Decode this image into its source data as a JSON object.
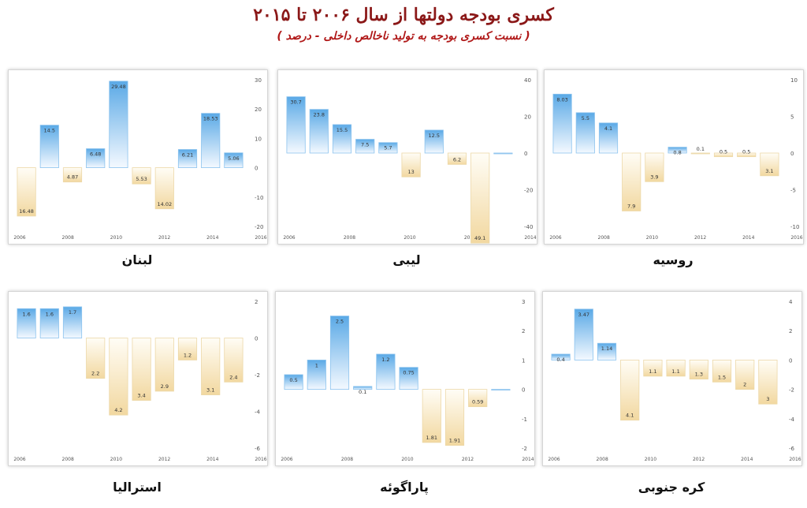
{
  "header": {
    "title": "کسری بودجه دولتها از سال ۲۰۰۶ تا ۲۰۱۵",
    "subtitle": "( نسبت کسری بودجه به تولید ناخالص داخلی - درصد )"
  },
  "colors": {
    "positive_bar": "#5aa9e6",
    "negative_bar": "#f2d8a0",
    "axis_text": "#555555"
  },
  "chart_data": [
    {
      "type": "bar",
      "country": "لبنان",
      "categories": [
        "2006",
        "2007",
        "2008",
        "2009",
        "2010",
        "2011",
        "2012",
        "2013",
        "2014",
        "2015"
      ],
      "values": [
        -16.48,
        14.5,
        -4.87,
        6.48,
        29.48,
        -5.53,
        -14.02,
        6.21,
        18.53,
        5.06
      ],
      "value_labels": [
        "16.48",
        "14.5",
        "4.87",
        "6.48",
        "29.48",
        "5.53",
        "14.02",
        "6.21",
        "18.53",
        "5.06"
      ],
      "ylim": [
        -20,
        30
      ],
      "yticks": [
        30,
        20,
        10,
        0,
        -10,
        -20
      ],
      "ytick_labels": [
        "30",
        "20",
        "10",
        "0",
        "-10",
        "-20"
      ],
      "xticks": [
        "2006",
        "2008",
        "2010",
        "2012",
        "2014",
        "2016"
      ]
    },
    {
      "type": "bar",
      "country": "لیبی",
      "categories": [
        "2006",
        "2007",
        "2008",
        "2009",
        "2010",
        "2011",
        "2012",
        "2013",
        "2014",
        "2015"
      ],
      "values": [
        30.7,
        23.8,
        15.5,
        7.5,
        5.7,
        -13,
        12.5,
        -6.2,
        -49.1,
        0
      ],
      "value_labels": [
        "30.7",
        "23.8",
        "15.5",
        "7.5",
        "5.7",
        "13",
        "12.5",
        "6.2",
        "49.1",
        ""
      ],
      "ylim": [
        -40,
        40
      ],
      "yticks": [
        40,
        20,
        0,
        -20,
        -40
      ],
      "ytick_labels": [
        "40",
        "20",
        "0",
        "-20",
        "-40"
      ],
      "xticks": [
        "2006",
        "2008",
        "2010",
        "2012",
        "2014"
      ]
    },
    {
      "type": "bar",
      "country": "روسیه",
      "categories": [
        "2006",
        "2007",
        "2008",
        "2009",
        "2010",
        "2011",
        "2012",
        "2013",
        "2014",
        "2015"
      ],
      "values": [
        8.03,
        5.5,
        4.1,
        -7.9,
        -3.9,
        0.8,
        -0.1,
        -0.5,
        -0.5,
        -3.1
      ],
      "value_labels": [
        "8.03",
        "5.5",
        "4.1",
        "7.9",
        "3.9",
        "0.8",
        "0.1",
        "0.5",
        "0.5",
        "3.1"
      ],
      "ylim": [
        -10,
        10
      ],
      "yticks": [
        10,
        5,
        0,
        -5,
        -10
      ],
      "ytick_labels": [
        "10",
        "5",
        "0",
        "-5",
        "-10"
      ],
      "xticks": [
        "2006",
        "2008",
        "2010",
        "2012",
        "2014",
        "2016"
      ]
    },
    {
      "type": "bar",
      "country": "استرالیا",
      "categories": [
        "2006",
        "2007",
        "2008",
        "2009",
        "2010",
        "2011",
        "2012",
        "2013",
        "2014",
        "2015"
      ],
      "values": [
        1.6,
        1.6,
        1.7,
        -2.2,
        -4.2,
        -3.4,
        -2.9,
        -1.2,
        -3.1,
        -2.4
      ],
      "value_labels": [
        "1.6",
        "1.6",
        "1.7",
        "2.2",
        "4.2",
        "3.4",
        "2.9",
        "1.2",
        "3.1",
        "2.4"
      ],
      "ylim": [
        -6,
        2
      ],
      "yticks": [
        2,
        0,
        -2,
        -4,
        -6
      ],
      "ytick_labels": [
        "2",
        "0",
        "-2",
        "-4",
        "-6"
      ],
      "xticks": [
        "2006",
        "2008",
        "2010",
        "2012",
        "2014",
        "2016"
      ]
    },
    {
      "type": "bar",
      "country": "پاراگوئه",
      "categories": [
        "2006",
        "2007",
        "2008",
        "2009",
        "2010",
        "2011",
        "2012",
        "2013",
        "2014",
        "2015"
      ],
      "values": [
        0.5,
        1,
        2.5,
        0.1,
        1.2,
        0.75,
        -1.81,
        -1.91,
        -0.59,
        0
      ],
      "value_labels": [
        "0.5",
        "1",
        "2.5",
        "0.1",
        "1.2",
        "0.75",
        "1.81",
        "1.91",
        "0.59",
        ""
      ],
      "ylim": [
        -2,
        3
      ],
      "yticks": [
        3,
        2,
        1,
        0,
        -1,
        -2
      ],
      "ytick_labels": [
        "3",
        "2",
        "1",
        "0",
        "-1",
        "-2"
      ],
      "xticks": [
        "2006",
        "2008",
        "2010",
        "2012",
        "2014"
      ]
    },
    {
      "type": "bar",
      "country": "کره جنوبی",
      "categories": [
        "2006",
        "2007",
        "2008",
        "2009",
        "2010",
        "2011",
        "2012",
        "2013",
        "2014",
        "2015"
      ],
      "values": [
        0.4,
        3.47,
        1.14,
        -4.1,
        -1.1,
        -1.1,
        -1.3,
        -1.5,
        -2,
        -3
      ],
      "value_labels": [
        "0.4",
        "3.47",
        "1.14",
        "4.1",
        "1.1",
        "1.1",
        "1.3",
        "1.5",
        "2",
        "3"
      ],
      "ylim": [
        -6,
        4
      ],
      "yticks": [
        4,
        2,
        0,
        -2,
        -4,
        -6
      ],
      "ytick_labels": [
        "4",
        "2",
        "0",
        "-2",
        "-4",
        "-6"
      ],
      "xticks": [
        "2006",
        "2008",
        "2010",
        "2012",
        "2014",
        "2016"
      ]
    }
  ]
}
